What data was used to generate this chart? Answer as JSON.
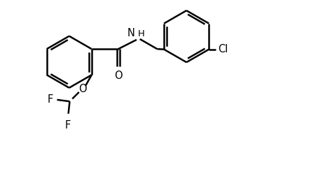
{
  "bg_color": "#ffffff",
  "line_color": "#000000",
  "line_width": 1.8,
  "font_size": 10.5,
  "fig_width": 4.54,
  "fig_height": 2.42,
  "dpi": 100,
  "xlim": [
    0,
    9.5
  ],
  "ylim": [
    0,
    5.0
  ]
}
